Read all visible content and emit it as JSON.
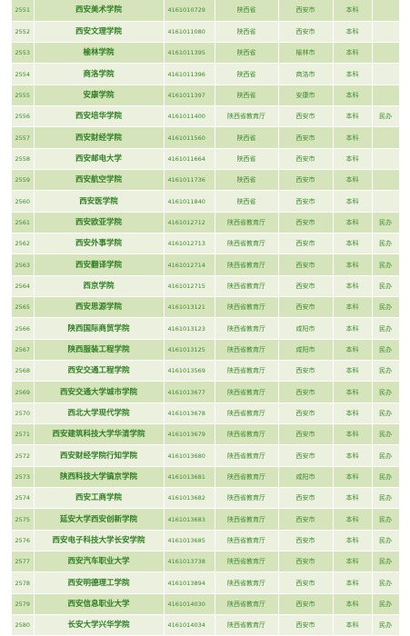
{
  "rows": [
    {
      "no": "2551",
      "name": "西安美术学院",
      "code": "4161010729",
      "dept": "陕西省",
      "city": "西安市",
      "level": "本科",
      "note": ""
    },
    {
      "no": "2552",
      "name": "西安文理学院",
      "code": "4161011080",
      "dept": "陕西省",
      "city": "西安市",
      "level": "本科",
      "note": ""
    },
    {
      "no": "2553",
      "name": "榆林学院",
      "code": "4161011395",
      "dept": "陕西省",
      "city": "榆林市",
      "level": "本科",
      "note": ""
    },
    {
      "no": "2554",
      "name": "商洛学院",
      "code": "4161011396",
      "dept": "陕西省",
      "city": "商洛市",
      "level": "本科",
      "note": ""
    },
    {
      "no": "2555",
      "name": "安康学院",
      "code": "4161011397",
      "dept": "陕西省",
      "city": "安康市",
      "level": "本科",
      "note": ""
    },
    {
      "no": "2556",
      "name": "西安培华学院",
      "code": "4161011400",
      "dept": "陕西省教育厅",
      "city": "西安市",
      "level": "本科",
      "note": "民办"
    },
    {
      "no": "2557",
      "name": "西安财经学院",
      "code": "4161011560",
      "dept": "陕西省",
      "city": "西安市",
      "level": "本科",
      "note": ""
    },
    {
      "no": "2558",
      "name": "西安邮电大学",
      "code": "4161011664",
      "dept": "陕西省",
      "city": "西安市",
      "level": "本科",
      "note": ""
    },
    {
      "no": "2559",
      "name": "西安航空学院",
      "code": "4161011736",
      "dept": "陕西省",
      "city": "西安市",
      "level": "本科",
      "note": ""
    },
    {
      "no": "2560",
      "name": "西安医学院",
      "code": "4161011840",
      "dept": "陕西省",
      "city": "西安市",
      "level": "本科",
      "note": ""
    },
    {
      "no": "2561",
      "name": "西安欧亚学院",
      "code": "4161012712",
      "dept": "陕西省教育厅",
      "city": "西安市",
      "level": "本科",
      "note": "民办"
    },
    {
      "no": "2562",
      "name": "西安外事学院",
      "code": "4161012713",
      "dept": "陕西省教育厅",
      "city": "西安市",
      "level": "本科",
      "note": "民办"
    },
    {
      "no": "2563",
      "name": "西安翻译学院",
      "code": "4161012714",
      "dept": "陕西省教育厅",
      "city": "西安市",
      "level": "本科",
      "note": "民办"
    },
    {
      "no": "2564",
      "name": "西京学院",
      "code": "4161012715",
      "dept": "陕西省教育厅",
      "city": "西安市",
      "level": "本科",
      "note": "民办"
    },
    {
      "no": "2565",
      "name": "西安思源学院",
      "code": "4161013121",
      "dept": "陕西省教育厅",
      "city": "西安市",
      "level": "本科",
      "note": "民办"
    },
    {
      "no": "2566",
      "name": "陕西国际商贸学院",
      "code": "4161013123",
      "dept": "陕西省教育厅",
      "city": "咸阳市",
      "level": "本科",
      "note": "民办"
    },
    {
      "no": "2567",
      "name": "陕西服装工程学院",
      "code": "4161013125",
      "dept": "陕西省教育厅",
      "city": "咸阳市",
      "level": "本科",
      "note": "民办"
    },
    {
      "no": "2568",
      "name": "西安交通工程学院",
      "code": "4161013569",
      "dept": "陕西省教育厅",
      "city": "西安市",
      "level": "本科",
      "note": "民办"
    },
    {
      "no": "2569",
      "name": "西安交通大学城市学院",
      "code": "4161013677",
      "dept": "陕西省教育厅",
      "city": "西安市",
      "level": "本科",
      "note": "民办"
    },
    {
      "no": "2570",
      "name": "西北大学现代学院",
      "code": "4161013678",
      "dept": "陕西省教育厅",
      "city": "西安市",
      "level": "本科",
      "note": "民办"
    },
    {
      "no": "2571",
      "name": "西安建筑科技大学华清学院",
      "code": "4161013679",
      "dept": "陕西省教育厅",
      "city": "西安市",
      "level": "本科",
      "note": "民办"
    },
    {
      "no": "2572",
      "name": "西安财经学院行知学院",
      "code": "4161013680",
      "dept": "陕西省教育厅",
      "city": "西安市",
      "level": "本科",
      "note": "民办"
    },
    {
      "no": "2573",
      "name": "陕西科技大学镐京学院",
      "code": "4161013681",
      "dept": "陕西省教育厅",
      "city": "咸阳市",
      "level": "本科",
      "note": "民办"
    },
    {
      "no": "2574",
      "name": "西安工商学院",
      "code": "4161013682",
      "dept": "陕西省教育厅",
      "city": "西安市",
      "level": "本科",
      "note": "民办"
    },
    {
      "no": "2575",
      "name": "延安大学西安创新学院",
      "code": "4161013683",
      "dept": "陕西省教育厅",
      "city": "西安市",
      "level": "本科",
      "note": "民办"
    },
    {
      "no": "2576",
      "name": "西安电子科技大学长安学院",
      "code": "4161013685",
      "dept": "陕西省教育厅",
      "city": "西安市",
      "level": "本科",
      "note": "民办"
    },
    {
      "no": "2577",
      "name": "西安汽车职业大学",
      "code": "4161013738",
      "dept": "陕西省教育厅",
      "city": "西安市",
      "level": "本科",
      "note": "民办"
    },
    {
      "no": "2578",
      "name": "西安明德理工学院",
      "code": "4161013894",
      "dept": "陕西省教育厅",
      "city": "西安市",
      "level": "本科",
      "note": "民办"
    },
    {
      "no": "2579",
      "name": "西安信息职业大学",
      "code": "4161014030",
      "dept": "陕西省教育厅",
      "city": "西安市",
      "level": "本科",
      "note": "民办"
    },
    {
      "no": "2580",
      "name": "长安大学兴华学院",
      "code": "4161014034",
      "dept": "陕西省教育厅",
      "city": "西安市",
      "level": "本科",
      "note": "民办"
    }
  ]
}
